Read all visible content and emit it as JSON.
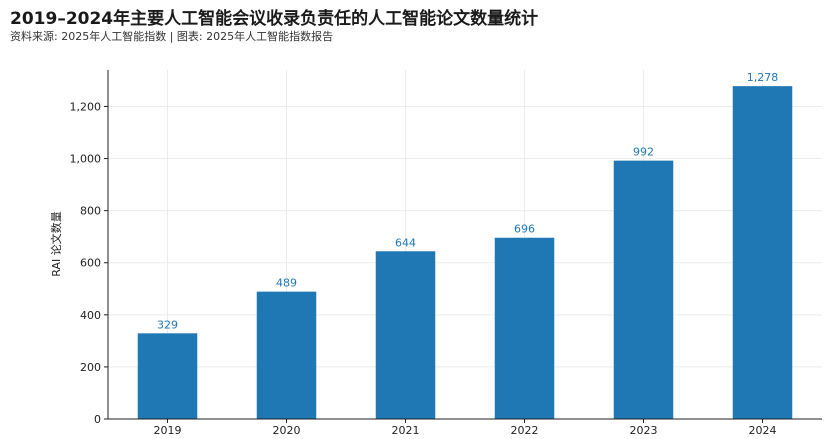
{
  "header": {
    "title": "2019–2024年主要人工智能会议收录负责任的人工智能论文数量统计",
    "source": "资料来源: 2025年人工智能指数 | 图表: 2025年人工智能指数报告"
  },
  "colors": {
    "bar": "#1f77b4",
    "label": "#1f77b4",
    "grid": "#ececec",
    "axis": "#222222"
  },
  "chart_data": {
    "type": "bar",
    "title": "2019–2024年主要人工智能会议收录负责任的人工智能论文数量统计",
    "xlabel": "",
    "ylabel": "RAI 论文数量",
    "categories": [
      "2019",
      "2020",
      "2021",
      "2022",
      "2023",
      "2024"
    ],
    "values": [
      329,
      489,
      644,
      696,
      992,
      1278
    ],
    "value_labels": [
      "329",
      "489",
      "644",
      "696",
      "992",
      "1,278"
    ],
    "ylim": [
      0,
      1340
    ],
    "yticks": [
      0,
      200,
      400,
      600,
      800,
      1000,
      1200
    ],
    "ytick_labels": [
      "0",
      "200",
      "400",
      "600",
      "800",
      "1,000",
      "1,200"
    ],
    "grid": true,
    "legend": "none"
  }
}
